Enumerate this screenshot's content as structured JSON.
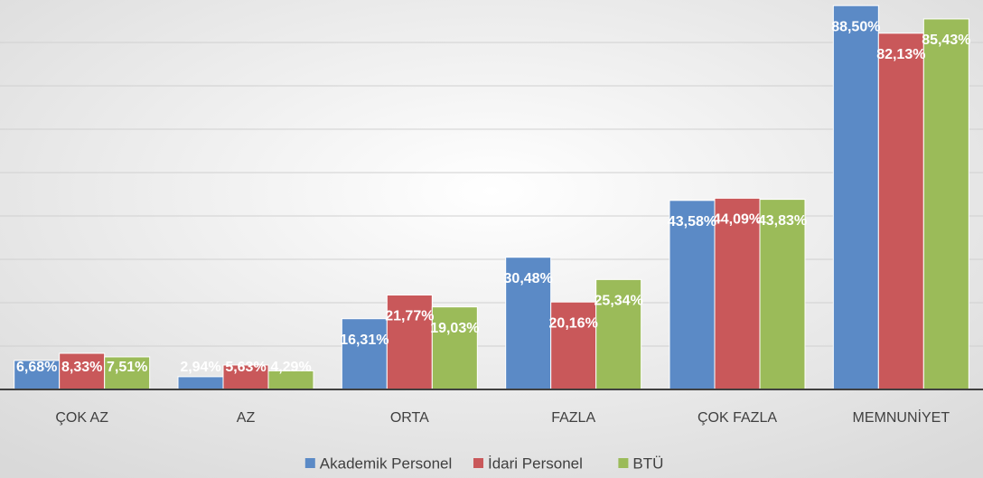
{
  "chart_data": {
    "type": "bar",
    "categories": [
      "ÇOK AZ",
      "AZ",
      "ORTA",
      "FAZLA",
      "ÇOK FAZLA",
      "MEMNUNİYET"
    ],
    "series": [
      {
        "name": "Akademik Personel",
        "color": "#5b8ac6",
        "values": [
          6.68,
          2.94,
          16.31,
          30.48,
          43.58,
          88.5
        ],
        "value_labels": [
          "6,68%",
          "2,94%",
          "16,31%",
          "30,48%",
          "43,58%",
          "88,50%"
        ]
      },
      {
        "name": "İdari Personel",
        "color": "#c9585a",
        "values": [
          8.33,
          5.63,
          21.77,
          20.16,
          44.09,
          82.13
        ],
        "value_labels": [
          "8,33%",
          "5,63%",
          "21,77%",
          "20,16%",
          "44,09%",
          "82,13%"
        ]
      },
      {
        "name": "BTÜ",
        "color": "#9bbb59",
        "values": [
          7.51,
          4.29,
          19.03,
          25.34,
          43.83,
          85.43
        ],
        "value_labels": [
          "7,51%",
          "4,29%",
          "19,03%",
          "25,34%",
          "43,83%",
          "85,43%"
        ]
      }
    ],
    "ylim": [
      0,
      90
    ],
    "yticks": [
      0,
      10,
      20,
      30,
      40,
      50,
      60,
      70,
      80,
      90
    ],
    "grid": true,
    "legend": "bottom"
  }
}
